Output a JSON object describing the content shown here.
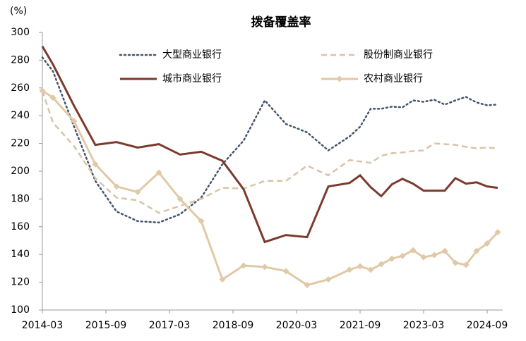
{
  "chart_data": {
    "type": "line",
    "title": "拨备覆盖率",
    "y_unit": "(%)",
    "x": [
      "2014-03",
      "2014-06",
      "2014-12",
      "2015-06",
      "2015-12",
      "2016-06",
      "2016-12",
      "2017-06",
      "2017-12",
      "2018-06",
      "2018-12",
      "2019-06",
      "2019-12",
      "2020-06",
      "2020-12",
      "2021-06",
      "2021-09",
      "2021-12",
      "2022-03",
      "2022-06",
      "2022-09",
      "2022-12",
      "2023-03",
      "2023-06",
      "2023-09",
      "2023-12",
      "2024-03",
      "2024-06",
      "2024-09",
      "2024-12"
    ],
    "xlim": [
      "2014-03",
      "2024-12"
    ],
    "xticks": [
      "2014-03",
      "2015-09",
      "2017-03",
      "2018-09",
      "2020-03",
      "2021-09",
      "2023-03",
      "2024-09"
    ],
    "ylim": [
      100,
      300
    ],
    "yticks": [
      100,
      120,
      140,
      160,
      180,
      200,
      220,
      240,
      260,
      280,
      300
    ],
    "series": [
      {
        "name": "大型商业银行",
        "color": "#44546a",
        "style": "dotted",
        "values": [
          282,
          272,
          232,
          193,
          171,
          164,
          163,
          169,
          181,
          205,
          222,
          251,
          234,
          228,
          215,
          225,
          232,
          245,
          245,
          246.5,
          246,
          251,
          250,
          251.5,
          248,
          251,
          253.5,
          249.5,
          247.5,
          248
        ]
      },
      {
        "name": "股份制商业银行",
        "color": "#d9c3a9",
        "style": "dashed",
        "values": [
          258,
          235,
          218,
          195,
          181,
          179,
          170,
          175,
          180,
          188,
          187.5,
          193,
          193,
          204,
          197,
          208,
          207,
          206,
          211,
          213,
          213.5,
          214.5,
          215,
          220,
          219.5,
          219,
          217.5,
          216.5,
          217,
          216.5
        ]
      },
      {
        "name": "城市商业银行",
        "color": "#7b3a2e",
        "style": "solid",
        "values": [
          290,
          277,
          247,
          219,
          221,
          217,
          219.5,
          212,
          214,
          207.5,
          187,
          149,
          154,
          152.5,
          189,
          191.5,
          197,
          188.5,
          182,
          190.5,
          194.5,
          191,
          186,
          186,
          186,
          195,
          191,
          192,
          189,
          188
        ]
      },
      {
        "name": "农村商业银行",
        "color": "#e0c9a6",
        "style": "solid",
        "marker": "diamond",
        "values": [
          258,
          253,
          236,
          205,
          189,
          185,
          199,
          180,
          164,
          122,
          132,
          131,
          128,
          118,
          122,
          129,
          131.5,
          129,
          133,
          137,
          139,
          143,
          138,
          139.5,
          142.5,
          134,
          132.5,
          142.5,
          148,
          156
        ]
      }
    ]
  }
}
